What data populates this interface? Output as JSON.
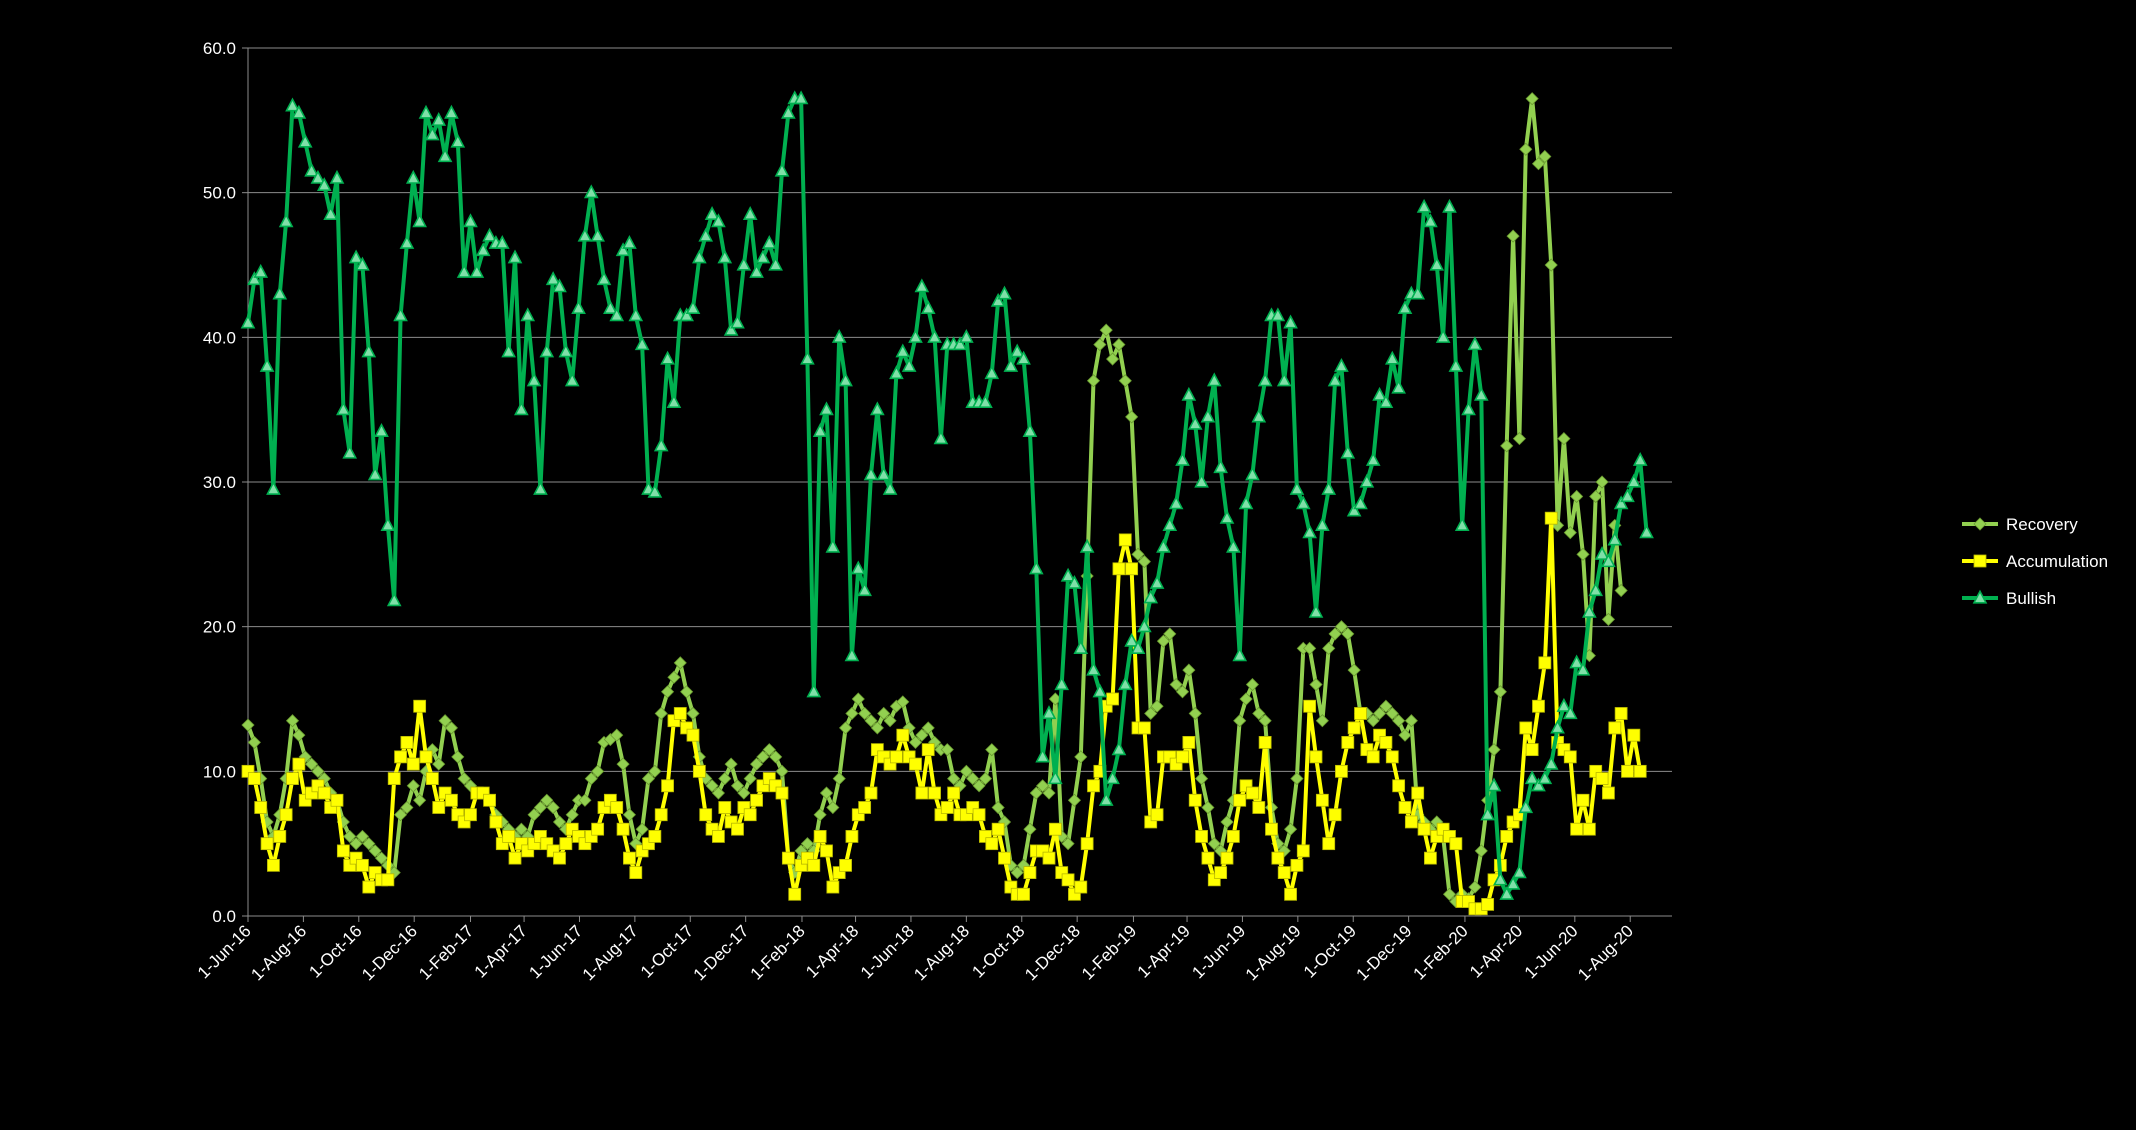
{
  "chart_data": {
    "type": "line",
    "title": "",
    "xlabel": "",
    "ylabel": "",
    "ylim": [
      0,
      60
    ],
    "y_ticks": [
      "0.0",
      "10.0",
      "20.0",
      "30.0",
      "40.0",
      "50.0",
      "60.0"
    ],
    "x_tick_labels": [
      "1-Jun-16",
      "1-Aug-16",
      "1-Oct-16",
      "1-Dec-16",
      "1-Feb-17",
      "1-Apr-17",
      "1-Jun-17",
      "1-Aug-17",
      "1-Oct-17",
      "1-Dec-17",
      "1-Feb-18",
      "1-Apr-18",
      "1-Jun-18",
      "1-Aug-18",
      "1-Oct-18",
      "1-Dec-18",
      "1-Feb-19",
      "1-Apr-19",
      "1-Jun-19",
      "1-Aug-19",
      "1-Oct-19",
      "1-Dec-19",
      "1-Feb-20",
      "1-Apr-20",
      "1-Jun-20",
      "1-Aug-20"
    ],
    "grid": "horizontal",
    "legend_position": "right",
    "x_start": "2016-06-01",
    "x_end": "2020-09-16",
    "point_interval_days": 7,
    "series": [
      {
        "name": "Recovery",
        "color": "#92d050",
        "marker": "diamond",
        "values": [
          13.2,
          12.0,
          9.5,
          6.5,
          5.5,
          7.0,
          9.5,
          13.5,
          12.5,
          11.0,
          10.5,
          10.0,
          9.5,
          8.5,
          8.0,
          6.5,
          5.5,
          5.0,
          5.5,
          5.0,
          4.5,
          4.0,
          3.5,
          3.0,
          7.0,
          7.5,
          9.0,
          8.0,
          10.0,
          11.5,
          10.5,
          13.5,
          13.0,
          11.0,
          9.5,
          9.0,
          8.5,
          8.5,
          8.0,
          7.0,
          6.5,
          6.0,
          5.5,
          6.0,
          5.5,
          7.0,
          7.5,
          8.0,
          7.5,
          6.5,
          6.0,
          7.0,
          8.0,
          8.0,
          9.5,
          10.0,
          12.0,
          12.2,
          12.5,
          10.5,
          7.0,
          5.0,
          6.0,
          9.5,
          10.0,
          14.0,
          15.5,
          16.5,
          17.5,
          15.5,
          14.0,
          11.0,
          9.5,
          9.0,
          8.5,
          9.5,
          10.5,
          9.0,
          8.5,
          9.5,
          10.5,
          11.0,
          11.5,
          11.0,
          10.0,
          4.0,
          3.0,
          4.5,
          5.0,
          4.5,
          7.0,
          8.5,
          7.5,
          9.5,
          13.0,
          14.0,
          15.0,
          14.0,
          13.5,
          13.0,
          14.0,
          13.5,
          14.5,
          14.8,
          13.0,
          12.0,
          12.5,
          13.0,
          12.0,
          11.5,
          11.5,
          9.5,
          9.0,
          10.0,
          9.5,
          9.0,
          9.5,
          11.5,
          7.5,
          6.5,
          3.5,
          3.0,
          3.5,
          6.0,
          8.5,
          9.0,
          8.5,
          15.0,
          5.5,
          5.0,
          8.0,
          11.0,
          23.5,
          37.0,
          39.5,
          40.5,
          38.5,
          39.5,
          37.0,
          34.5,
          25.0,
          24.5,
          14.0,
          14.5,
          19.0,
          19.5,
          16.0,
          15.5,
          17.0,
          14.0,
          9.5,
          7.5,
          5.0,
          4.5,
          6.5,
          8.0,
          13.5,
          15.0,
          16.0,
          14.0,
          13.5,
          7.5,
          5.0,
          4.5,
          6.0,
          9.5,
          18.5,
          18.5,
          16.0,
          13.5,
          18.5,
          19.5,
          20.0,
          19.5,
          17.0,
          14.0,
          14.0,
          13.5,
          14.0,
          14.5,
          14.0,
          13.5,
          12.5,
          13.5,
          7.0,
          6.5,
          6.0,
          6.5,
          5.5,
          1.5,
          1.0,
          1.5,
          1.2,
          2.0,
          4.5,
          8.0,
          11.5,
          15.5,
          32.5,
          47.0,
          33.0,
          53.0,
          56.5,
          52.0,
          52.5,
          45.0,
          27.0,
          33.0,
          26.5,
          29.0,
          25.0,
          18.0,
          29.0,
          30.0,
          20.5,
          27.0,
          22.5
        ]
      },
      {
        "name": "Accumulation",
        "color": "#ffff00",
        "marker": "square",
        "values": [
          10.0,
          9.5,
          7.5,
          5.0,
          3.5,
          5.5,
          7.0,
          9.5,
          10.5,
          8.0,
          8.5,
          9.0,
          8.5,
          7.5,
          8.0,
          4.5,
          3.5,
          4.0,
          3.5,
          2.0,
          3.0,
          2.5,
          2.5,
          9.5,
          11.0,
          12.0,
          10.5,
          14.5,
          11.0,
          9.5,
          7.5,
          8.5,
          8.0,
          7.0,
          6.5,
          7.0,
          8.5,
          8.5,
          8.0,
          6.5,
          5.0,
          5.5,
          4.0,
          5.0,
          4.5,
          5.0,
          5.5,
          5.0,
          4.5,
          4.0,
          5.0,
          6.0,
          5.5,
          5.0,
          5.5,
          6.0,
          7.5,
          8.0,
          7.5,
          6.0,
          4.0,
          3.0,
          4.5,
          5.0,
          5.5,
          7.0,
          9.0,
          13.5,
          14.0,
          13.0,
          12.5,
          10.0,
          7.0,
          6.0,
          5.5,
          7.5,
          6.5,
          6.0,
          7.5,
          7.0,
          8.0,
          9.0,
          9.5,
          9.0,
          8.5,
          4.0,
          1.5,
          3.5,
          4.0,
          3.5,
          5.5,
          4.5,
          2.0,
          3.0,
          3.5,
          5.5,
          7.0,
          7.5,
          8.5,
          11.5,
          11.0,
          10.5,
          11.0,
          12.5,
          11.0,
          10.5,
          8.5,
          11.5,
          8.5,
          7.0,
          7.5,
          8.5,
          7.0,
          7.0,
          7.5,
          7.0,
          5.5,
          5.0,
          6.0,
          4.0,
          2.0,
          1.5,
          1.5,
          3.0,
          4.5,
          4.5,
          4.0,
          6.0,
          3.0,
          2.5,
          1.5,
          2.0,
          5.0,
          9.0,
          10.0,
          14.5,
          15.0,
          24.0,
          26.0,
          24.0,
          13.0,
          13.0,
          6.5,
          7.0,
          11.0,
          11.0,
          10.5,
          11.0,
          12.0,
          8.0,
          5.5,
          4.0,
          2.5,
          3.0,
          4.0,
          5.5,
          8.0,
          9.0,
          8.5,
          7.5,
          12.0,
          6.0,
          4.0,
          3.0,
          1.5,
          3.5,
          4.5,
          14.5,
          11.0,
          8.0,
          5.0,
          7.0,
          10.0,
          12.0,
          13.0,
          14.0,
          11.5,
          11.0,
          12.5,
          12.0,
          11.0,
          9.0,
          7.5,
          6.5,
          8.5,
          6.0,
          4.0,
          5.5,
          6.0,
          5.5,
          5.0,
          1.0,
          1.0,
          0.5,
          0.5,
          0.8,
          2.5,
          3.5,
          5.5,
          6.5,
          7.0,
          13.0,
          11.5,
          14.5,
          17.5,
          27.5,
          12.0,
          11.5,
          11.0,
          6.0,
          8.0,
          6.0,
          10.0,
          9.5,
          8.5,
          13.0,
          14.0,
          10.0,
          12.5,
          10.0
        ]
      },
      {
        "name": "Bullish",
        "color": "#00b050",
        "marker": "triangle",
        "values": [
          41.0,
          44.0,
          44.5,
          38.0,
          29.5,
          43.0,
          48.0,
          56.0,
          55.5,
          53.5,
          51.5,
          51.0,
          50.5,
          48.5,
          51.0,
          35.0,
          32.0,
          45.5,
          45.0,
          39.0,
          30.5,
          33.5,
          27.0,
          21.8,
          41.5,
          46.5,
          51.0,
          48.0,
          55.5,
          54.0,
          55.0,
          52.5,
          55.5,
          53.5,
          44.5,
          48.0,
          44.5,
          46.0,
          47.0,
          46.5,
          46.5,
          39.0,
          45.5,
          35.0,
          41.5,
          37.0,
          29.5,
          39.0,
          44.0,
          43.5,
          39.0,
          37.0,
          42.0,
          47.0,
          50.0,
          47.0,
          44.0,
          42.0,
          41.5,
          46.0,
          46.5,
          41.5,
          39.5,
          29.5,
          29.3,
          32.5,
          38.5,
          35.5,
          41.5,
          41.5,
          42.0,
          45.5,
          47.0,
          48.5,
          48.0,
          45.5,
          40.5,
          41.0,
          45.0,
          48.5,
          44.5,
          45.5,
          46.5,
          45.0,
          51.5,
          55.5,
          56.5,
          56.5,
          38.5,
          15.5,
          33.5,
          35.0,
          25.5,
          40.0,
          37.0,
          18.0,
          24.0,
          22.5,
          30.5,
          35.0,
          30.5,
          29.5,
          37.5,
          39.0,
          38.0,
          40.0,
          43.5,
          42.0,
          40.0,
          33.0,
          39.5,
          39.5,
          39.5,
          40.0,
          35.5,
          35.5,
          35.5,
          37.5,
          42.5,
          43.0,
          38.0,
          39.0,
          38.5,
          33.5,
          24.0,
          11.0,
          14.0,
          9.5,
          16.0,
          23.5,
          23.0,
          18.5,
          25.5,
          17.0,
          15.5,
          8.0,
          9.5,
          11.5,
          16.0,
          19.0,
          18.5,
          20.0,
          22.0,
          23.0,
          25.5,
          27.0,
          28.5,
          31.5,
          36.0,
          34.0,
          30.0,
          34.5,
          37.0,
          31.0,
          27.5,
          25.5,
          18.0,
          28.5,
          30.5,
          34.5,
          37.0,
          41.5,
          41.5,
          37.0,
          41.0,
          29.5,
          28.5,
          26.5,
          21.0,
          27.0,
          29.5,
          37.0,
          38.0,
          32.0,
          28.0,
          28.5,
          30.0,
          31.5,
          36.0,
          35.5,
          38.5,
          36.5,
          42.0,
          43.0,
          43.0,
          49.0,
          48.0,
          45.0,
          40.0,
          49.0,
          38.0,
          27.0,
          35.0,
          39.5,
          36.0,
          7.0,
          9.0,
          2.5,
          1.5,
          2.2,
          3.0,
          7.5,
          9.5,
          9.0,
          9.5,
          10.5,
          13.0,
          14.5,
          14.0,
          17.5,
          17.0,
          21.0,
          22.5,
          25.0,
          24.5,
          26.0,
          28.5,
          29.0,
          30.0,
          31.5,
          26.5
        ]
      }
    ]
  }
}
